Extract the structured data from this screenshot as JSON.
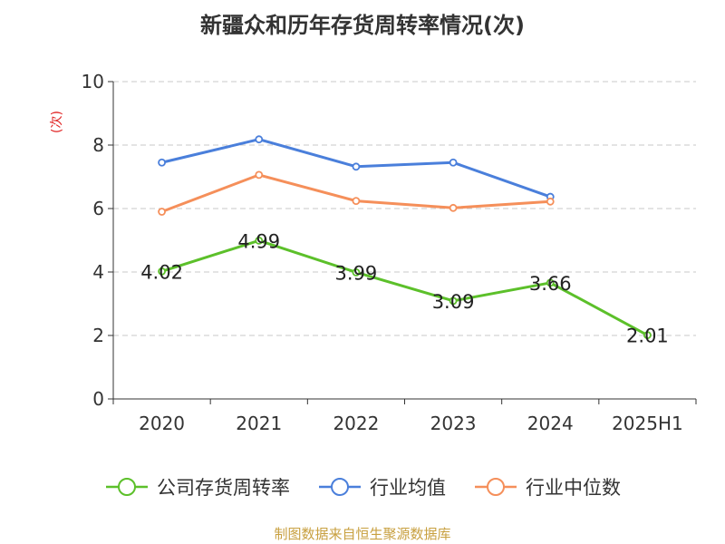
{
  "chart_data": {
    "type": "line",
    "title": "新疆众和历年存货周转率情况(次)",
    "y_unit_label": "(次)",
    "categories": [
      "2020",
      "2021",
      "2022",
      "2023",
      "2024",
      "2025H1"
    ],
    "ylim": [
      0,
      10
    ],
    "y_ticks": [
      "0",
      "2",
      "4",
      "6",
      "8",
      "10"
    ],
    "grid": true,
    "legend_position": "bottom",
    "series": [
      {
        "name": "公司存货周转率",
        "color": "#5cc02a",
        "values": [
          4.02,
          4.99,
          3.99,
          3.09,
          3.66,
          2.01
        ],
        "labels": [
          "4.02",
          "4.99",
          "3.99",
          "3.09",
          "3.66",
          "2.01"
        ]
      },
      {
        "name": "行业均值",
        "color": "#4a7fdb",
        "values": [
          7.45,
          8.18,
          7.32,
          7.45,
          6.37,
          null
        ]
      },
      {
        "name": "行业中位数",
        "color": "#f58f5a",
        "values": [
          5.9,
          7.06,
          6.24,
          6.02,
          6.22,
          null
        ]
      }
    ]
  },
  "footer": {
    "source": "制图数据来自恒生聚源数据库"
  }
}
